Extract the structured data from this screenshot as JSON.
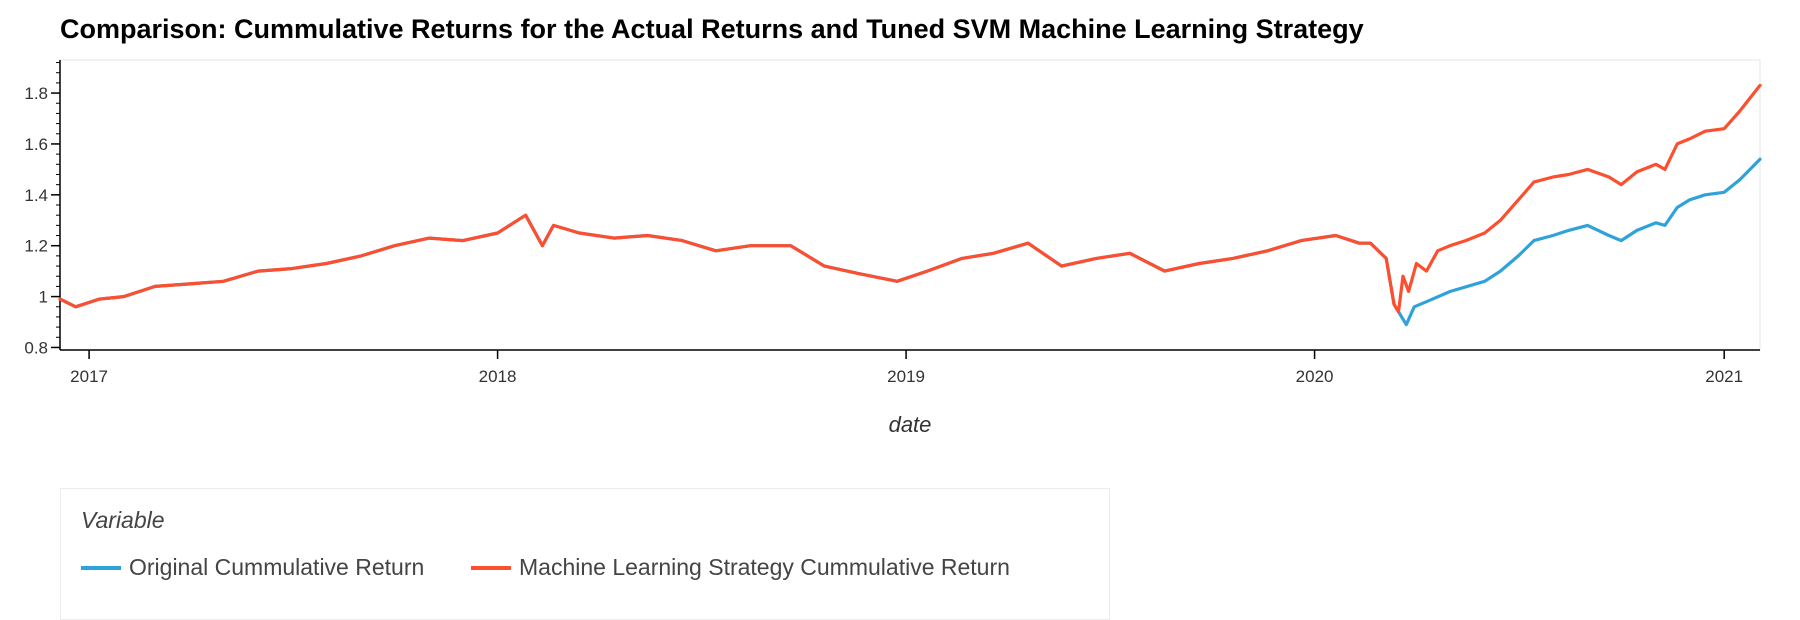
{
  "chart_data": {
    "type": "line",
    "title": "Comparison: Cummulative Returns for the Actual Returns and Tuned SVM Machine Learning Strategy",
    "xlabel": "date",
    "ylabel": "",
    "xlim": [
      "2016-12-06",
      "2021-02-02"
    ],
    "ylim": [
      0.79,
      1.93
    ],
    "x_ticks": [
      "2017",
      "2018",
      "2019",
      "2020",
      "2021"
    ],
    "y_ticks": [
      "0.8",
      "1",
      "1.2",
      "1.4",
      "1.6",
      "1.8"
    ],
    "grid": false,
    "legend": {
      "title": "Variable",
      "placement": "bottom-left"
    },
    "series": [
      {
        "name": "Original Cummulative Return",
        "color": "#30a2da",
        "points": [
          [
            "2016-12-06",
            0.99
          ],
          [
            "2016-12-20",
            0.96
          ],
          [
            "2017-01-10",
            0.99
          ],
          [
            "2017-02-01",
            1.0
          ],
          [
            "2017-03-01",
            1.04
          ],
          [
            "2017-04-01",
            1.05
          ],
          [
            "2017-05-01",
            1.06
          ],
          [
            "2017-06-01",
            1.1
          ],
          [
            "2017-07-01",
            1.11
          ],
          [
            "2017-08-01",
            1.13
          ],
          [
            "2017-09-01",
            1.16
          ],
          [
            "2017-10-01",
            1.2
          ],
          [
            "2017-11-01",
            1.23
          ],
          [
            "2017-12-01",
            1.22
          ],
          [
            "2018-01-01",
            1.25
          ],
          [
            "2018-01-26",
            1.32
          ],
          [
            "2018-02-10",
            1.2
          ],
          [
            "2018-02-20",
            1.28
          ],
          [
            "2018-03-15",
            1.25
          ],
          [
            "2018-04-15",
            1.23
          ],
          [
            "2018-05-15",
            1.24
          ],
          [
            "2018-06-15",
            1.22
          ],
          [
            "2018-07-15",
            1.18
          ],
          [
            "2018-08-15",
            1.2
          ],
          [
            "2018-09-20",
            1.2
          ],
          [
            "2018-10-20",
            1.12
          ],
          [
            "2018-11-20",
            1.09
          ],
          [
            "2018-12-24",
            1.06
          ],
          [
            "2019-01-20",
            1.1
          ],
          [
            "2019-02-20",
            1.15
          ],
          [
            "2019-03-20",
            1.17
          ],
          [
            "2019-04-20",
            1.21
          ],
          [
            "2019-05-20",
            1.12
          ],
          [
            "2019-06-20",
            1.15
          ],
          [
            "2019-07-20",
            1.17
          ],
          [
            "2019-08-20",
            1.1
          ],
          [
            "2019-09-20",
            1.13
          ],
          [
            "2019-10-20",
            1.15
          ],
          [
            "2019-11-20",
            1.18
          ],
          [
            "2019-12-20",
            1.22
          ],
          [
            "2020-01-20",
            1.24
          ],
          [
            "2020-02-10",
            1.21
          ],
          [
            "2020-02-20",
            1.21
          ],
          [
            "2020-03-05",
            1.15
          ],
          [
            "2020-03-12",
            0.97
          ],
          [
            "2020-03-16",
            0.94
          ],
          [
            "2020-03-23",
            0.89
          ],
          [
            "2020-03-30",
            0.96
          ],
          [
            "2020-04-10",
            0.98
          ],
          [
            "2020-05-01",
            1.02
          ],
          [
            "2020-06-01",
            1.06
          ],
          [
            "2020-06-15",
            1.1
          ],
          [
            "2020-07-01",
            1.16
          ],
          [
            "2020-07-15",
            1.22
          ],
          [
            "2020-08-01",
            1.24
          ],
          [
            "2020-08-15",
            1.26
          ],
          [
            "2020-09-01",
            1.28
          ],
          [
            "2020-09-20",
            1.24
          ],
          [
            "2020-10-01",
            1.22
          ],
          [
            "2020-10-15",
            1.26
          ],
          [
            "2020-11-01",
            1.29
          ],
          [
            "2020-11-09",
            1.28
          ],
          [
            "2020-11-20",
            1.35
          ],
          [
            "2020-12-01",
            1.38
          ],
          [
            "2020-12-15",
            1.4
          ],
          [
            "2021-01-01",
            1.41
          ],
          [
            "2021-01-15",
            1.46
          ],
          [
            "2021-02-02",
            1.54
          ]
        ]
      },
      {
        "name": "Machine Learning Strategy Cummulative Return",
        "color": "#fc4f30",
        "points": [
          [
            "2016-12-06",
            0.99
          ],
          [
            "2016-12-20",
            0.96
          ],
          [
            "2017-01-10",
            0.99
          ],
          [
            "2017-02-01",
            1.0
          ],
          [
            "2017-03-01",
            1.04
          ],
          [
            "2017-04-01",
            1.05
          ],
          [
            "2017-05-01",
            1.06
          ],
          [
            "2017-06-01",
            1.1
          ],
          [
            "2017-07-01",
            1.11
          ],
          [
            "2017-08-01",
            1.13
          ],
          [
            "2017-09-01",
            1.16
          ],
          [
            "2017-10-01",
            1.2
          ],
          [
            "2017-11-01",
            1.23
          ],
          [
            "2017-12-01",
            1.22
          ],
          [
            "2018-01-01",
            1.25
          ],
          [
            "2018-01-26",
            1.32
          ],
          [
            "2018-02-10",
            1.2
          ],
          [
            "2018-02-20",
            1.28
          ],
          [
            "2018-03-15",
            1.25
          ],
          [
            "2018-04-15",
            1.23
          ],
          [
            "2018-05-15",
            1.24
          ],
          [
            "2018-06-15",
            1.22
          ],
          [
            "2018-07-15",
            1.18
          ],
          [
            "2018-08-15",
            1.2
          ],
          [
            "2018-09-20",
            1.2
          ],
          [
            "2018-10-20",
            1.12
          ],
          [
            "2018-11-20",
            1.09
          ],
          [
            "2018-12-24",
            1.06
          ],
          [
            "2019-01-20",
            1.1
          ],
          [
            "2019-02-20",
            1.15
          ],
          [
            "2019-03-20",
            1.17
          ],
          [
            "2019-04-20",
            1.21
          ],
          [
            "2019-05-20",
            1.12
          ],
          [
            "2019-06-20",
            1.15
          ],
          [
            "2019-07-20",
            1.17
          ],
          [
            "2019-08-20",
            1.1
          ],
          [
            "2019-09-20",
            1.13
          ],
          [
            "2019-10-20",
            1.15
          ],
          [
            "2019-11-20",
            1.18
          ],
          [
            "2019-12-20",
            1.22
          ],
          [
            "2020-01-20",
            1.24
          ],
          [
            "2020-02-10",
            1.21
          ],
          [
            "2020-02-20",
            1.21
          ],
          [
            "2020-03-05",
            1.15
          ],
          [
            "2020-03-12",
            0.97
          ],
          [
            "2020-03-16",
            0.94
          ],
          [
            "2020-03-20",
            1.08
          ],
          [
            "2020-03-25",
            1.02
          ],
          [
            "2020-04-01",
            1.13
          ],
          [
            "2020-04-10",
            1.1
          ],
          [
            "2020-04-20",
            1.18
          ],
          [
            "2020-05-01",
            1.2
          ],
          [
            "2020-05-15",
            1.22
          ],
          [
            "2020-06-01",
            1.25
          ],
          [
            "2020-06-15",
            1.3
          ],
          [
            "2020-07-01",
            1.38
          ],
          [
            "2020-07-15",
            1.45
          ],
          [
            "2020-08-01",
            1.47
          ],
          [
            "2020-08-15",
            1.48
          ],
          [
            "2020-09-01",
            1.5
          ],
          [
            "2020-09-20",
            1.47
          ],
          [
            "2020-10-01",
            1.44
          ],
          [
            "2020-10-15",
            1.49
          ],
          [
            "2020-11-01",
            1.52
          ],
          [
            "2020-11-09",
            1.5
          ],
          [
            "2020-11-20",
            1.6
          ],
          [
            "2020-12-01",
            1.62
          ],
          [
            "2020-12-15",
            1.65
          ],
          [
            "2021-01-01",
            1.66
          ],
          [
            "2021-01-15",
            1.73
          ],
          [
            "2021-02-02",
            1.83
          ]
        ]
      }
    ]
  }
}
